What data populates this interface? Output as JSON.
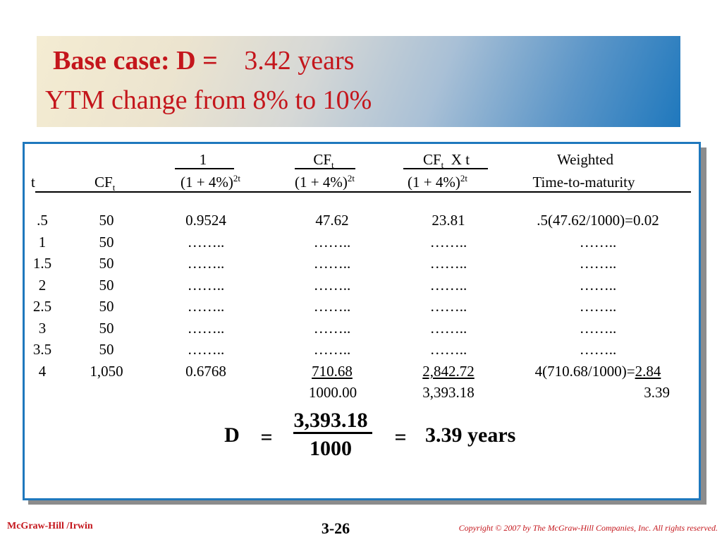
{
  "title": {
    "line1_label": "Base case: D = ",
    "line1_value": "3.42 years",
    "line2": "YTM change from 8% to 10%"
  },
  "table": {
    "headers": {
      "t": "t",
      "cf_main": "CF",
      "cf_sub": "t",
      "col3_num": "1",
      "col3_den_main": "(1 + 4%)",
      "col3_den_sup": "2t",
      "col4_num_main": "CF",
      "col4_num_sub": "t",
      "col4_den_main": "(1 + 4%)",
      "col4_den_sup": "2t",
      "col5_num_main": "CF",
      "col5_num_sub": "t",
      "col5_num_rest": "X  t",
      "col5_den_main": "(1 + 4%)",
      "col5_den_sup": "2t",
      "col6_line1": "Weighted",
      "col6_line2": "Time-to-maturity"
    },
    "rows": [
      {
        "t": ".5",
        "cf": "50",
        "df": "0.9524",
        "pv": "47.62",
        "pvt": "23.81",
        "w": ".5(47.62/1000)=0.02"
      },
      {
        "t": "1",
        "cf": "50",
        "df": "……..",
        "pv": "……..",
        "pvt": "……..",
        "w": "…….."
      },
      {
        "t": "1.5",
        "cf": "50",
        "df": "……..",
        "pv": "……..",
        "pvt": "……..",
        "w": "…….."
      },
      {
        "t": "2",
        "cf": "50",
        "df": "……..",
        "pv": "……..",
        "pvt": "……..",
        "w": "…….."
      },
      {
        "t": "2.5",
        "cf": "50",
        "df": "……..",
        "pv": "……..",
        "pvt": "……..",
        "w": "…….."
      },
      {
        "t": "3",
        "cf": "50",
        "df": "……..",
        "pv": "……..",
        "pvt": "……..",
        "w": "…….."
      },
      {
        "t": "3.5",
        "cf": "50",
        "df": "……..",
        "pv": "……..",
        "pvt": "……..",
        "w": "…….."
      },
      {
        "t": "4",
        "cf": "1,050",
        "df": "0.6768",
        "pv": "710.68",
        "pvt": "2,842.72",
        "w_prefix": "4(710.68/1000)=",
        "w_value": "2.84"
      }
    ],
    "totals": {
      "pv": "1000.00",
      "pvt": "3,393.18",
      "w": "3.39"
    }
  },
  "formula": {
    "lhs": "D",
    "eq1": "=",
    "numerator": "3,393.18",
    "denominator": "1000",
    "eq2": "=",
    "result": "3.39 years"
  },
  "footer": {
    "publisher": "McGraw-Hill /Irwin",
    "slide_number": "3-26",
    "copyright": "Copyright © 2007 by The McGraw-Hill Companies, Inc.  All rights reserved."
  },
  "colors": {
    "title_text": "#c4161c",
    "panel_border": "#1f78bd",
    "footer_text": "#c4161c"
  }
}
